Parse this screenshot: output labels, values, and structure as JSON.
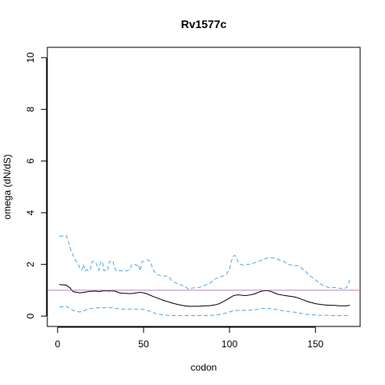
{
  "chart_data": {
    "type": "line",
    "title": "Rv1577c",
    "xlabel": "codon",
    "ylabel": "omega (dN/dS)",
    "xlim": [
      -6,
      176
    ],
    "ylim": [
      -0.4,
      10.4
    ],
    "xticks": [
      0,
      50,
      100,
      150
    ],
    "yticks": [
      0,
      2,
      4,
      6,
      8,
      10
    ],
    "grid": false,
    "legend": "none",
    "reference_line": {
      "y": 1,
      "color": "#c77fc0"
    },
    "series": [
      {
        "role": "upper-bound",
        "style": "dashed",
        "color": "#4ea6e6",
        "x": [
          1,
          5,
          6,
          7,
          8,
          10,
          12,
          13,
          14,
          15,
          16,
          17,
          18,
          19,
          20,
          21,
          22,
          23,
          24,
          25,
          26,
          27,
          28,
          29,
          30,
          31,
          32,
          34,
          35,
          36,
          37,
          38,
          40,
          42,
          43,
          44,
          45,
          46,
          47,
          48,
          49,
          51,
          52,
          53,
          54,
          55,
          56,
          58,
          60,
          62,
          64,
          65,
          66,
          68,
          70,
          72,
          74,
          75,
          76,
          78,
          80,
          82,
          84,
          86,
          88,
          90,
          92,
          94,
          96,
          98,
          100,
          101,
          102,
          103,
          104,
          105,
          106,
          108,
          110,
          112,
          114,
          116,
          118,
          120,
          122,
          124,
          126,
          128,
          130,
          132,
          134,
          136,
          138,
          140,
          142,
          144,
          146,
          148,
          150,
          152,
          154,
          156,
          158,
          160,
          162,
          164,
          166,
          168,
          169,
          170
        ],
        "y": [
          3.08,
          3.12,
          2.95,
          2.7,
          2.5,
          2.2,
          2.0,
          1.85,
          1.78,
          2.0,
          1.75,
          1.8,
          1.75,
          1.8,
          2.1,
          2.12,
          2.1,
          1.95,
          1.78,
          2.1,
          2.12,
          1.75,
          1.78,
          1.76,
          2.1,
          2.12,
          2.15,
          1.75,
          1.74,
          1.76,
          1.75,
          1.76,
          1.75,
          1.8,
          1.98,
          2.0,
          2.0,
          1.95,
          2.0,
          1.75,
          2.1,
          2.15,
          2.18,
          2.15,
          2.1,
          1.9,
          1.75,
          1.6,
          1.58,
          1.55,
          1.55,
          1.5,
          1.4,
          1.3,
          1.25,
          1.2,
          1.15,
          1.1,
          1.05,
          1.08,
          1.1,
          1.1,
          1.15,
          1.2,
          1.25,
          1.35,
          1.45,
          1.5,
          1.55,
          1.6,
          1.8,
          2.1,
          2.3,
          2.35,
          2.3,
          2.1,
          2.0,
          1.98,
          2.0,
          2.0,
          2.05,
          2.1,
          2.15,
          2.2,
          2.25,
          2.25,
          2.25,
          2.2,
          2.15,
          2.1,
          2.0,
          1.98,
          1.95,
          1.95,
          1.85,
          1.75,
          1.6,
          1.5,
          1.4,
          1.3,
          1.2,
          1.15,
          1.1,
          1.1,
          1.1,
          1.08,
          1.05,
          1.1,
          1.2,
          1.4
        ]
      },
      {
        "role": "estimate",
        "style": "solid",
        "color": "#000000",
        "x": [
          1,
          5,
          7,
          9,
          11,
          13,
          15,
          18,
          20,
          22,
          24,
          26,
          28,
          30,
          32,
          34,
          36,
          38,
          40,
          42,
          44,
          46,
          48,
          50,
          52,
          54,
          56,
          58,
          60,
          62,
          64,
          66,
          68,
          70,
          72,
          74,
          76,
          78,
          80,
          82,
          84,
          86,
          88,
          90,
          92,
          94,
          96,
          98,
          100,
          102,
          104,
          106,
          108,
          110,
          112,
          114,
          116,
          118,
          120,
          122,
          124,
          126,
          128,
          130,
          132,
          134,
          136,
          138,
          140,
          142,
          144,
          146,
          148,
          150,
          152,
          154,
          156,
          158,
          160,
          162,
          164,
          166,
          168,
          170
        ],
        "y": [
          1.22,
          1.2,
          1.1,
          0.95,
          0.92,
          0.9,
          0.92,
          0.95,
          0.96,
          0.97,
          0.95,
          0.97,
          0.98,
          0.97,
          0.98,
          0.95,
          0.9,
          0.88,
          0.88,
          0.87,
          0.88,
          0.9,
          0.92,
          0.9,
          0.86,
          0.8,
          0.75,
          0.7,
          0.65,
          0.6,
          0.56,
          0.52,
          0.48,
          0.45,
          0.42,
          0.4,
          0.38,
          0.38,
          0.38,
          0.38,
          0.39,
          0.4,
          0.4,
          0.42,
          0.44,
          0.48,
          0.55,
          0.62,
          0.7,
          0.78,
          0.82,
          0.82,
          0.8,
          0.8,
          0.82,
          0.85,
          0.9,
          0.95,
          0.98,
          0.98,
          0.96,
          0.9,
          0.85,
          0.82,
          0.8,
          0.78,
          0.76,
          0.74,
          0.7,
          0.65,
          0.6,
          0.55,
          0.52,
          0.48,
          0.46,
          0.44,
          0.43,
          0.42,
          0.42,
          0.41,
          0.4,
          0.4,
          0.4,
          0.42
        ]
      },
      {
        "role": "lower-bound",
        "style": "dashed",
        "color": "#4ea6e6",
        "x": [
          1,
          5,
          7,
          9,
          11,
          13,
          15,
          18,
          20,
          22,
          24,
          26,
          28,
          30,
          32,
          34,
          36,
          38,
          40,
          42,
          44,
          46,
          48,
          50,
          52,
          54,
          56,
          58,
          60,
          62,
          64,
          66,
          68,
          70,
          72,
          74,
          76,
          78,
          80,
          82,
          84,
          86,
          88,
          90,
          92,
          94,
          96,
          98,
          100,
          102,
          104,
          106,
          108,
          110,
          112,
          114,
          116,
          118,
          120,
          122,
          124,
          126,
          128,
          130,
          132,
          134,
          136,
          138,
          140,
          142,
          144,
          146,
          148,
          150,
          152,
          154,
          156,
          158,
          160,
          162,
          164,
          166,
          168,
          170
        ],
        "y": [
          0.35,
          0.38,
          0.3,
          0.22,
          0.18,
          0.16,
          0.2,
          0.28,
          0.3,
          0.32,
          0.32,
          0.32,
          0.33,
          0.32,
          0.32,
          0.3,
          0.28,
          0.27,
          0.27,
          0.27,
          0.27,
          0.27,
          0.28,
          0.26,
          0.22,
          0.18,
          0.12,
          0.08,
          0.06,
          0.04,
          0.03,
          0.02,
          0.02,
          0.02,
          0.02,
          0.02,
          0.02,
          0.02,
          0.02,
          0.02,
          0.02,
          0.02,
          0.03,
          0.03,
          0.04,
          0.06,
          0.08,
          0.12,
          0.16,
          0.2,
          0.22,
          0.22,
          0.22,
          0.22,
          0.23,
          0.24,
          0.26,
          0.28,
          0.3,
          0.3,
          0.29,
          0.27,
          0.25,
          0.22,
          0.2,
          0.18,
          0.16,
          0.15,
          0.13,
          0.1,
          0.08,
          0.06,
          0.05,
          0.04,
          0.03,
          0.03,
          0.03,
          0.03,
          0.02,
          0.02,
          0.02,
          0.02,
          0.02,
          0.02
        ]
      }
    ]
  }
}
